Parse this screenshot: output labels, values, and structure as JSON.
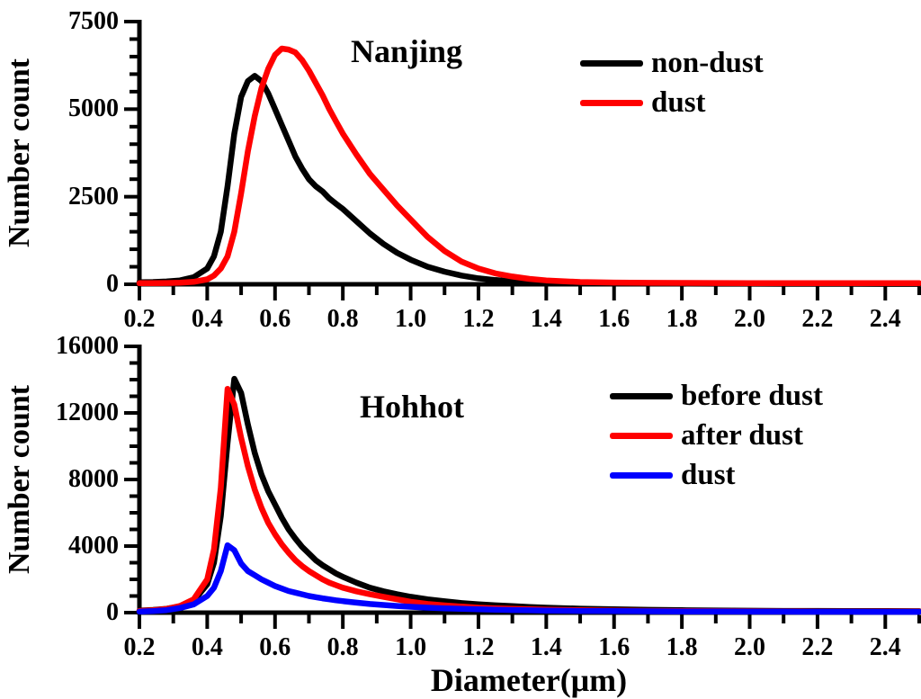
{
  "figure": {
    "background": "#ffffff",
    "axis_color": "#000000",
    "shared_xlabel": "Diameter(μm)"
  },
  "chart_data": [
    {
      "type": "line",
      "panel": "top",
      "title": "Nanjing",
      "xlabel": "",
      "ylabel": "Number count",
      "xlim": [
        0.2,
        2.5
      ],
      "ylim": [
        0,
        7500
      ],
      "xticks_major": [
        0.2,
        0.4,
        0.6,
        0.8,
        1.0,
        1.2,
        1.4,
        1.6,
        1.8,
        2.0,
        2.2,
        2.4
      ],
      "xtick_labels": [
        "0.2",
        "0.4",
        "0.6",
        "0.8",
        "1.0",
        "1.2",
        "1.4",
        "1.6",
        "1.8",
        "2.0",
        "2.2",
        "2.4"
      ],
      "x_minor_step": 0.1,
      "yticks_major": [
        0,
        2500,
        5000,
        7500
      ],
      "ytick_labels": [
        "0",
        "2500",
        "5000",
        "7500"
      ],
      "y_minor_step": 500,
      "grid": false,
      "legend_position": "upper right",
      "x": [
        0.2,
        0.24,
        0.28,
        0.32,
        0.36,
        0.4,
        0.42,
        0.44,
        0.46,
        0.48,
        0.5,
        0.52,
        0.54,
        0.56,
        0.58,
        0.6,
        0.62,
        0.64,
        0.66,
        0.68,
        0.7,
        0.72,
        0.74,
        0.76,
        0.78,
        0.8,
        0.84,
        0.88,
        0.92,
        0.96,
        1.0,
        1.05,
        1.1,
        1.15,
        1.2,
        1.25,
        1.3,
        1.35,
        1.4,
        1.5,
        1.6,
        1.7,
        1.8,
        1.9,
        2.0,
        2.1,
        2.2,
        2.3,
        2.4,
        2.5
      ],
      "series": [
        {
          "name": "non-dust",
          "color": "#000000",
          "values": [
            60,
            65,
            80,
            110,
            200,
            450,
            800,
            1500,
            2800,
            4300,
            5350,
            5800,
            5950,
            5800,
            5450,
            5000,
            4550,
            4100,
            3650,
            3300,
            3000,
            2800,
            2650,
            2450,
            2300,
            2150,
            1800,
            1450,
            1150,
            900,
            700,
            500,
            360,
            250,
            170,
            120,
            85,
            60,
            45,
            30,
            25,
            20,
            18,
            16,
            15,
            14,
            13,
            12,
            11,
            10
          ]
        },
        {
          "name": "dust",
          "color": "#ff0000",
          "values": [
            30,
            32,
            35,
            45,
            70,
            140,
            250,
            450,
            800,
            1500,
            2600,
            3800,
            4800,
            5600,
            6150,
            6550,
            6730,
            6700,
            6620,
            6400,
            6100,
            5750,
            5400,
            5000,
            4650,
            4300,
            3700,
            3150,
            2700,
            2250,
            1850,
            1350,
            950,
            650,
            450,
            310,
            220,
            155,
            110,
            65,
            48,
            42,
            38,
            35,
            33,
            32,
            31,
            30,
            30,
            30
          ]
        }
      ]
    },
    {
      "type": "line",
      "panel": "bottom",
      "title": "Hohhot",
      "xlabel": "Diameter(μm)",
      "ylabel": "Number count",
      "xlim": [
        0.2,
        2.5
      ],
      "ylim": [
        0,
        16000
      ],
      "xticks_major": [
        0.2,
        0.4,
        0.6,
        0.8,
        1.0,
        1.2,
        1.4,
        1.6,
        1.8,
        2.0,
        2.2,
        2.4
      ],
      "xtick_labels": [
        "0.2",
        "0.4",
        "0.6",
        "0.8",
        "1.0",
        "1.2",
        "1.4",
        "1.6",
        "1.8",
        "2.0",
        "2.2",
        "2.4"
      ],
      "x_minor_step": 0.1,
      "yticks_major": [
        0,
        4000,
        8000,
        12000,
        16000
      ],
      "ytick_labels": [
        "0",
        "4000",
        "8000",
        "12000",
        "16000"
      ],
      "y_minor_step": 1000,
      "grid": false,
      "legend_position": "upper right",
      "x": [
        0.2,
        0.24,
        0.28,
        0.32,
        0.36,
        0.4,
        0.42,
        0.44,
        0.46,
        0.48,
        0.5,
        0.52,
        0.54,
        0.56,
        0.58,
        0.6,
        0.62,
        0.64,
        0.66,
        0.68,
        0.7,
        0.72,
        0.74,
        0.76,
        0.78,
        0.8,
        0.84,
        0.88,
        0.92,
        0.96,
        1.0,
        1.05,
        1.1,
        1.15,
        1.2,
        1.25,
        1.3,
        1.35,
        1.4,
        1.5,
        1.6,
        1.7,
        1.8,
        1.9,
        2.0,
        2.1,
        2.2,
        2.3,
        2.4,
        2.5
      ],
      "series": [
        {
          "name": "before dust",
          "color": "#000000",
          "values": [
            120,
            160,
            230,
            380,
            700,
            1700,
            3000,
            5800,
            10200,
            14050,
            13200,
            11300,
            9600,
            8300,
            7300,
            6500,
            5700,
            5000,
            4450,
            3950,
            3550,
            3150,
            2850,
            2600,
            2350,
            2150,
            1800,
            1500,
            1280,
            1100,
            950,
            800,
            680,
            580,
            500,
            440,
            390,
            340,
            300,
            240,
            200,
            170,
            145,
            130,
            115,
            105,
            100,
            95,
            90,
            85
          ]
        },
        {
          "name": "after dust",
          "color": "#ff0000",
          "values": [
            100,
            140,
            220,
            400,
            800,
            2000,
            3800,
            7500,
            13450,
            12500,
            10500,
            8800,
            7400,
            6300,
            5400,
            4700,
            4100,
            3600,
            3150,
            2800,
            2500,
            2250,
            2000,
            1800,
            1650,
            1500,
            1280,
            1100,
            950,
            800,
            650,
            520,
            430,
            360,
            300,
            260,
            230,
            200,
            180,
            145,
            120,
            105,
            95,
            85,
            80,
            75,
            72,
            70,
            68,
            65
          ]
        },
        {
          "name": "dust",
          "color": "#0000ff",
          "values": [
            60,
            90,
            150,
            280,
            500,
            1000,
            1500,
            2500,
            4050,
            3750,
            2950,
            2500,
            2250,
            2000,
            1800,
            1600,
            1450,
            1300,
            1200,
            1100,
            1000,
            930,
            860,
            800,
            740,
            690,
            600,
            520,
            460,
            400,
            350,
            300,
            260,
            230,
            200,
            175,
            155,
            140,
            125,
            105,
            90,
            80,
            72,
            65,
            60,
            57,
            54,
            52,
            50,
            48
          ]
        }
      ]
    }
  ]
}
